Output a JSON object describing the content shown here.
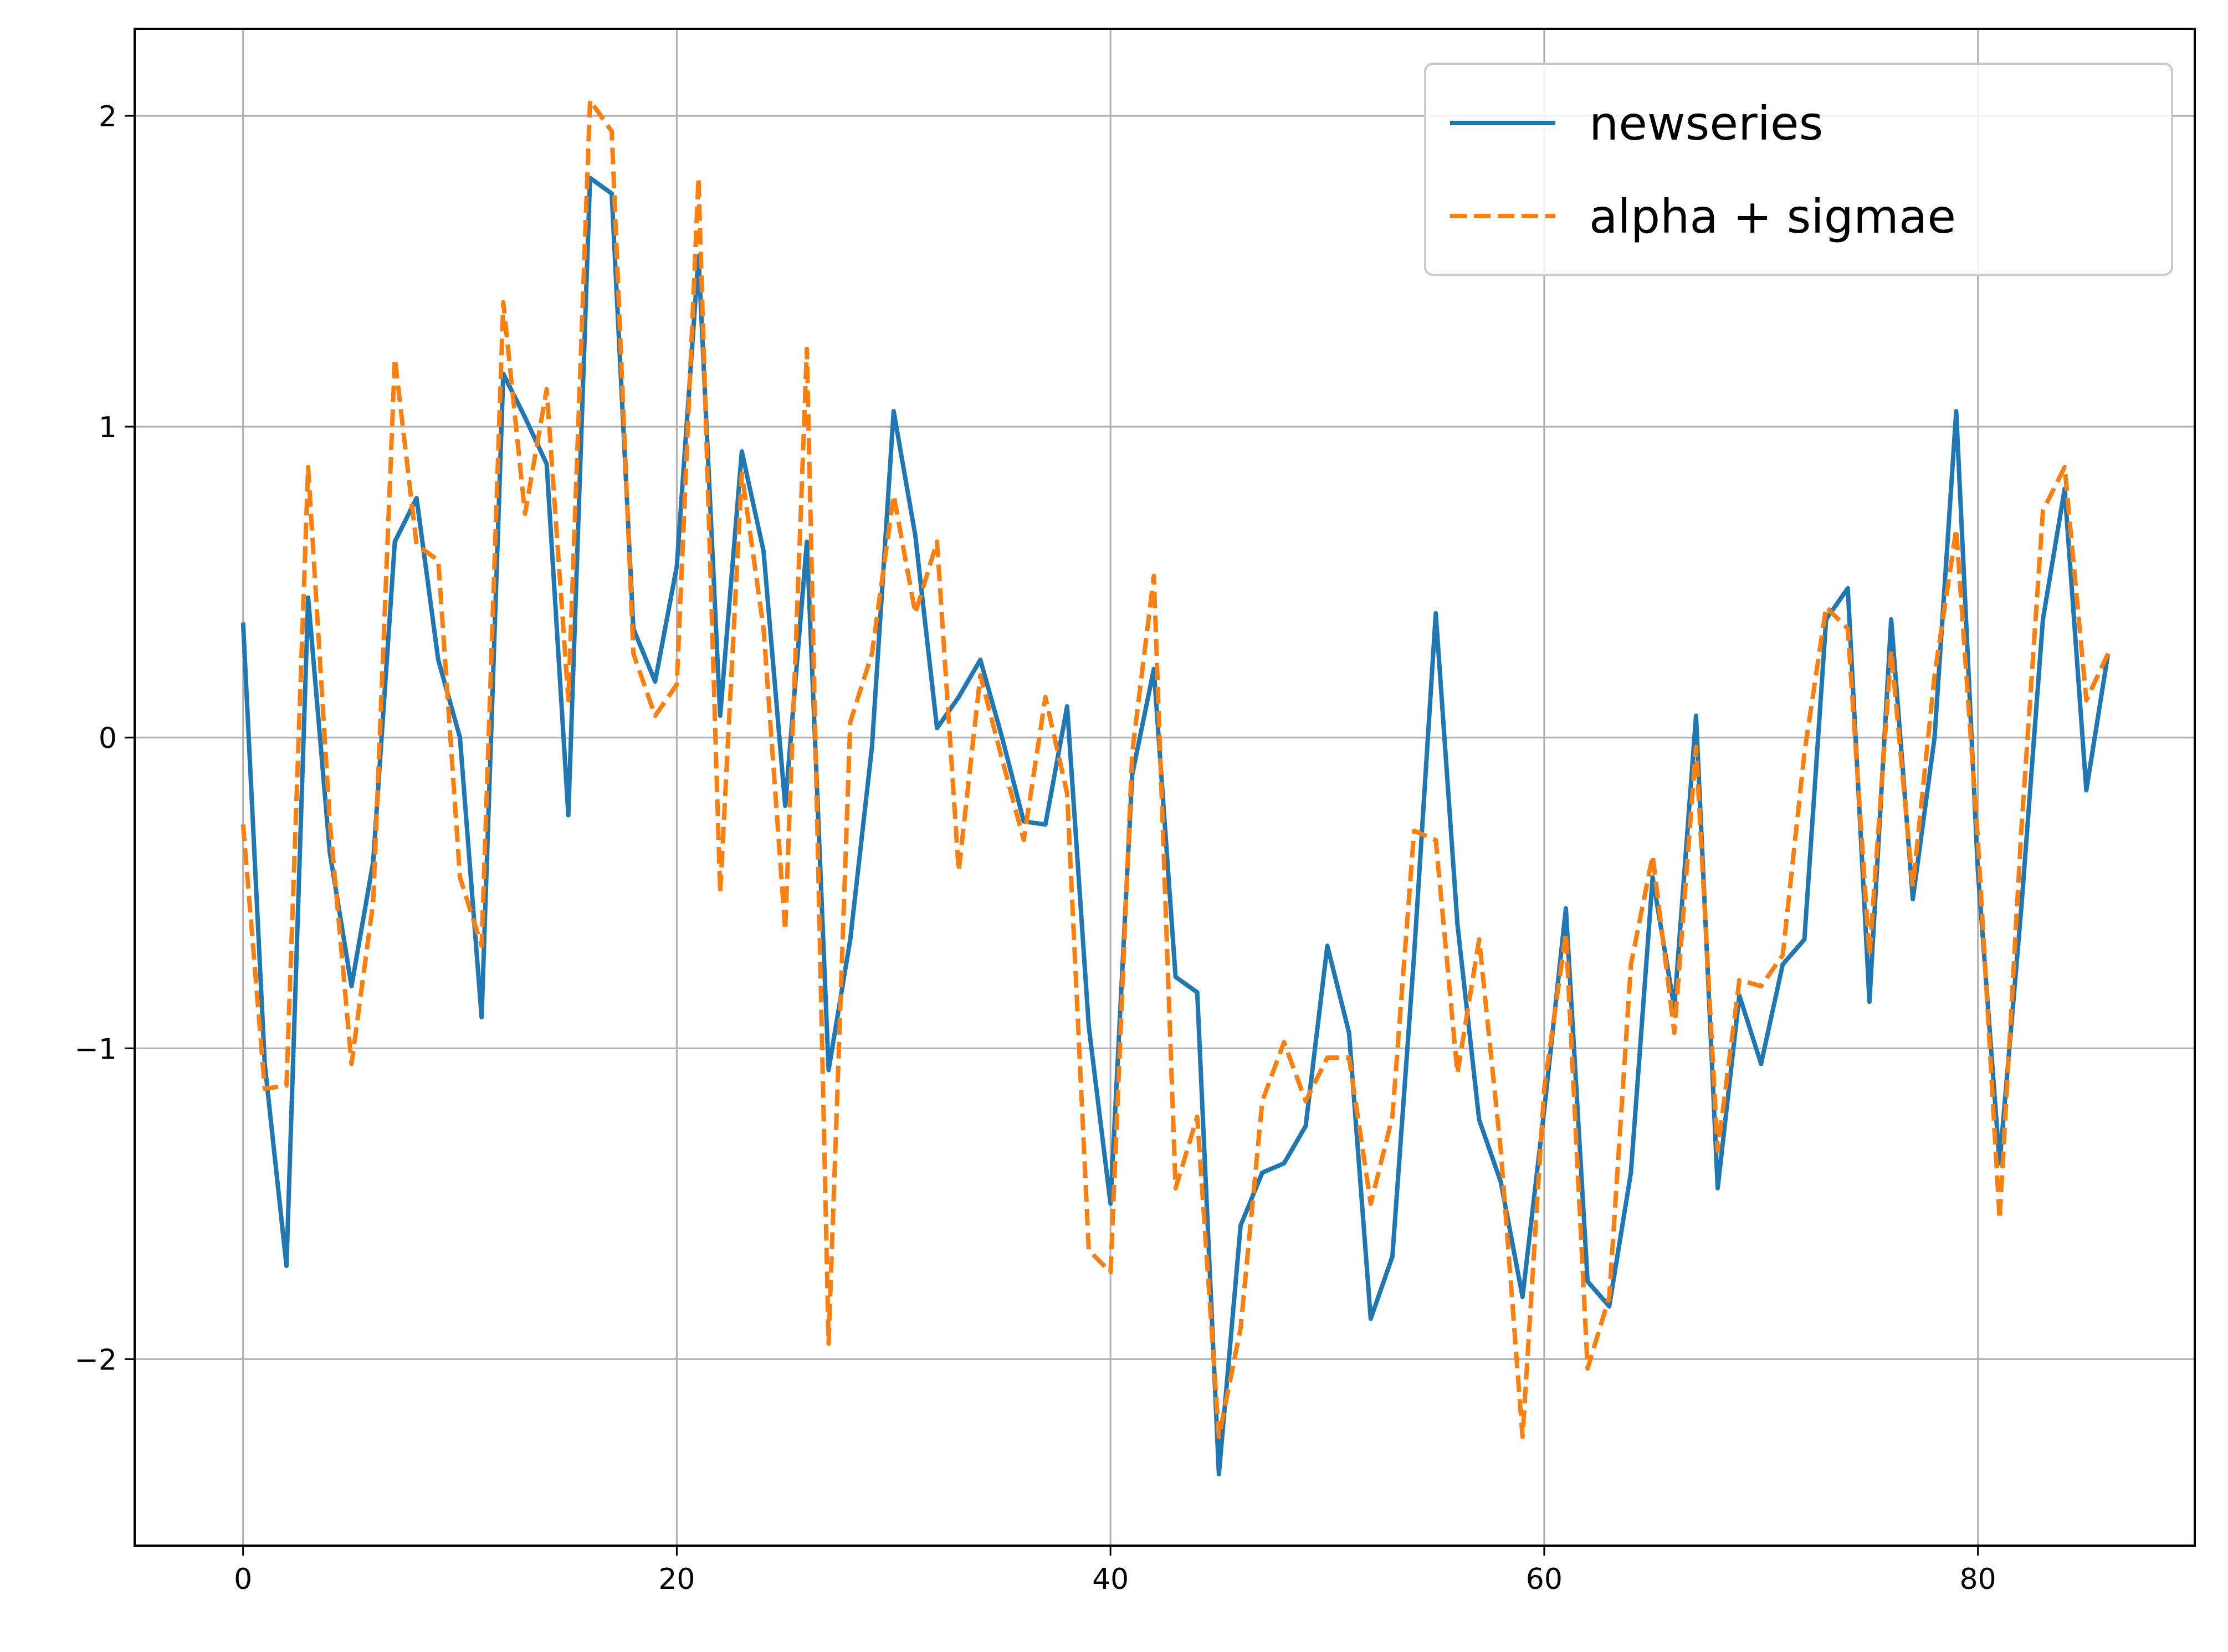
{
  "chart_data": {
    "type": "line",
    "title": "",
    "xlabel": "",
    "ylabel": "",
    "xlim": [
      -5,
      90
    ],
    "ylim": [
      -2.6,
      2.28
    ],
    "xticks": [
      0,
      20,
      40,
      60,
      80
    ],
    "yticks": [
      -2,
      -1,
      0,
      1,
      2
    ],
    "xtick_labels": [
      "0",
      "20",
      "40",
      "60",
      "80"
    ],
    "ytick_labels": [
      "−2",
      "−1",
      "0",
      "1",
      "2"
    ],
    "grid": true,
    "legend_position": "upper-right",
    "x": [
      0,
      1,
      2,
      3,
      4,
      5,
      6,
      7,
      8,
      9,
      10,
      11,
      12,
      13,
      14,
      15,
      16,
      17,
      18,
      19,
      20,
      21,
      22,
      23,
      24,
      25,
      26,
      27,
      28,
      29,
      30,
      31,
      32,
      33,
      34,
      35,
      36,
      37,
      38,
      39,
      40,
      41,
      42,
      43,
      44,
      45,
      46,
      47,
      48,
      49,
      50,
      51,
      52,
      53,
      54,
      55,
      56,
      57,
      58,
      59,
      60,
      61,
      62,
      63,
      64,
      65,
      66,
      67,
      68,
      69,
      70,
      71,
      72,
      73,
      74,
      75,
      76,
      77,
      78,
      79,
      80,
      81,
      82,
      83,
      84,
      85,
      86
    ],
    "series": [
      {
        "name": "newseries",
        "color": "#1f77b4",
        "style": "solid",
        "values": [
          0.37,
          -1.05,
          -1.7,
          0.45,
          -0.37,
          -0.8,
          -0.4,
          0.63,
          0.77,
          0.25,
          0.0,
          -0.9,
          1.17,
          1.03,
          0.88,
          -0.25,
          1.8,
          1.75,
          0.35,
          0.18,
          0.55,
          1.55,
          0.07,
          0.92,
          0.6,
          -0.22,
          0.63,
          -1.07,
          -0.65,
          -0.03,
          1.05,
          0.65,
          0.03,
          0.13,
          0.25,
          0.0,
          -0.27,
          -0.28,
          0.1,
          -0.93,
          -1.5,
          -0.12,
          0.22,
          -0.77,
          -0.82,
          -2.37,
          -1.57,
          -1.4,
          -1.37,
          -1.25,
          -0.67,
          -0.95,
          -1.87,
          -1.67,
          -0.7,
          0.4,
          -0.6,
          -1.23,
          -1.43,
          -1.8,
          -1.2,
          -0.55,
          -1.75,
          -1.83,
          -1.4,
          -0.45,
          -0.87,
          0.07,
          -1.45,
          -0.83,
          -1.05,
          -0.73,
          -0.65,
          0.38,
          0.48,
          -0.85,
          0.38,
          -0.52,
          0.0,
          1.05,
          -0.43,
          -1.37,
          -0.55,
          0.38,
          0.8,
          -0.17,
          0.27
        ]
      },
      {
        "name": "alpha + sigmae",
        "color": "#ff7f0e",
        "style": "dashed",
        "values": [
          -0.28,
          -1.13,
          -1.12,
          0.87,
          -0.27,
          -1.05,
          -0.53,
          1.22,
          0.62,
          0.57,
          -0.45,
          -0.67,
          1.4,
          0.72,
          1.12,
          0.12,
          2.05,
          1.95,
          0.27,
          0.07,
          0.17,
          1.8,
          -0.5,
          0.85,
          0.35,
          -0.62,
          1.25,
          -1.95,
          0.05,
          0.27,
          0.78,
          0.4,
          0.63,
          -0.43,
          0.2,
          -0.07,
          -0.33,
          0.13,
          -0.18,
          -1.65,
          -1.72,
          -0.05,
          0.52,
          -1.45,
          -1.22,
          -2.25,
          -1.9,
          -1.17,
          -0.98,
          -1.17,
          -1.03,
          -1.03,
          -1.5,
          -1.22,
          -0.3,
          -0.33,
          -1.08,
          -0.65,
          -1.33,
          -2.25,
          -1.13,
          -0.63,
          -2.03,
          -1.8,
          -0.73,
          -0.38,
          -0.95,
          -0.03,
          -1.33,
          -0.78,
          -0.8,
          -0.7,
          -0.05,
          0.42,
          0.35,
          -0.7,
          0.28,
          -0.48,
          0.2,
          0.67,
          -0.33,
          -1.55,
          -0.3,
          0.73,
          0.87,
          0.12,
          0.27
        ]
      }
    ]
  }
}
